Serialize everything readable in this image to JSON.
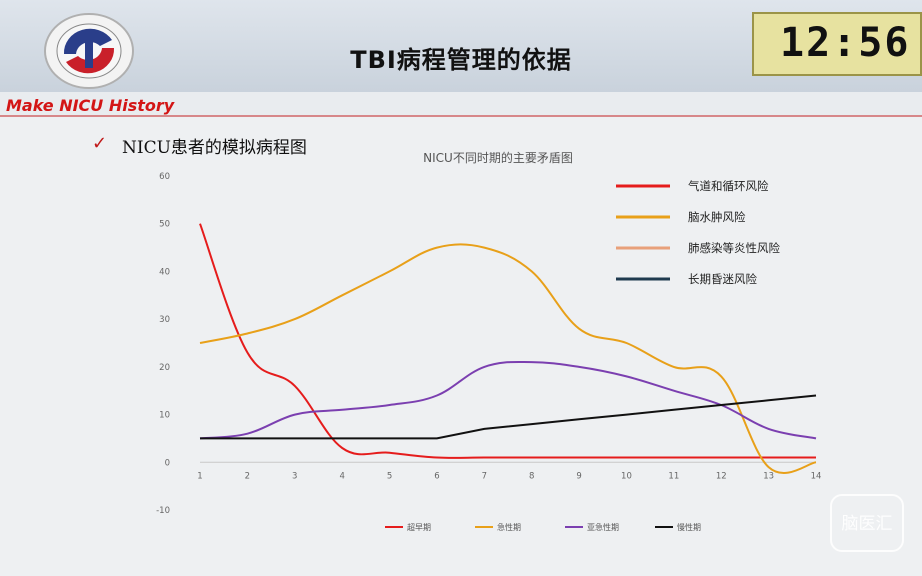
{
  "slide": {
    "title": "TBI病程管理的依据",
    "timer": "12:56",
    "brand_text": "Make NICU History",
    "bullet": "NICU患者的模拟病程图",
    "watermark": "脑医汇"
  },
  "colors": {
    "red": "#e51c1c",
    "orange": "#e8a019",
    "purple": "#7b3fb0",
    "black": "#111111",
    "salmon": "#e8a07a",
    "navy": "#1f3a4f"
  },
  "chart_data": {
    "type": "line",
    "title": "NICU不同时期的主要矛盾图",
    "x": [
      1,
      2,
      3,
      4,
      5,
      6,
      7,
      8,
      9,
      10,
      11,
      12,
      13,
      14
    ],
    "ylim": [
      -10,
      60
    ],
    "yticks": [
      -10,
      0,
      10,
      20,
      30,
      40,
      50,
      60
    ],
    "grid": false,
    "series": [
      {
        "name": "超早期",
        "color": "#e51c1c",
        "values": [
          50,
          23,
          16,
          3,
          2,
          1,
          1,
          1,
          1,
          1,
          1,
          1,
          1,
          1
        ]
      },
      {
        "name": "急性期",
        "color": "#e8a019",
        "values": [
          25,
          27,
          30,
          35,
          40,
          45,
          45,
          40,
          28,
          25,
          20,
          18,
          -1,
          0
        ]
      },
      {
        "name": "亚急性期",
        "color": "#7b3fb0",
        "values": [
          5,
          6,
          10,
          11,
          12,
          14,
          20,
          21,
          20,
          18,
          15,
          12,
          7,
          5
        ]
      },
      {
        "name": "慢性期",
        "color": "#111111",
        "values": [
          5,
          5,
          5,
          5,
          5,
          5,
          7,
          8,
          9,
          10,
          11,
          12,
          13,
          14
        ]
      }
    ],
    "legend_position": "bottom",
    "side_legend": [
      {
        "label": "气道和循环风险",
        "color": "#e51c1c"
      },
      {
        "label": "脑水肿风险",
        "color": "#e8a019"
      },
      {
        "label": "肺感染等炎性风险",
        "color": "#e8a07a"
      },
      {
        "label": "长期昏迷风险",
        "color": "#1f3a4f"
      }
    ]
  }
}
